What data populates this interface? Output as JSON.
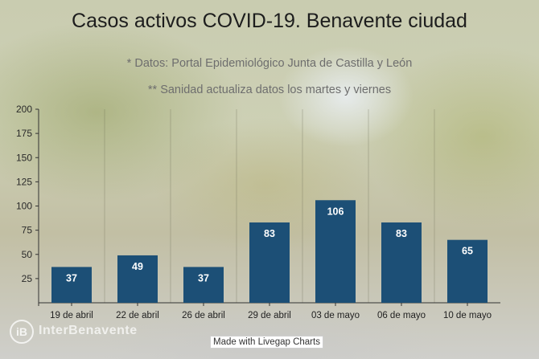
{
  "chart_data": {
    "type": "bar",
    "title": "Casos activos COVID-19. Benavente ciudad",
    "subtitle": [
      "* Datos: Portal Epidemiológico Junta de Castilla y León",
      "** Sanidad actualiza datos los martes y viernes"
    ],
    "categories": [
      "19 de abril",
      "22 de abril",
      "26 de abril",
      "29 de abril",
      "03 de mayo",
      "06 de mayo",
      "10 de mayo"
    ],
    "values": [
      37,
      49,
      37,
      83,
      106,
      83,
      65
    ],
    "ylim": [
      0,
      200
    ],
    "yticks": [
      25,
      50,
      75,
      100,
      125,
      150,
      175,
      200
    ],
    "xlabel": "",
    "ylabel": "",
    "data_labels": true,
    "grid": "vertical lines",
    "bar_color": "#1c4f76"
  },
  "credit": "Made with Livegap Charts",
  "watermark": {
    "badge": "iB",
    "text": "InterBenavente"
  }
}
